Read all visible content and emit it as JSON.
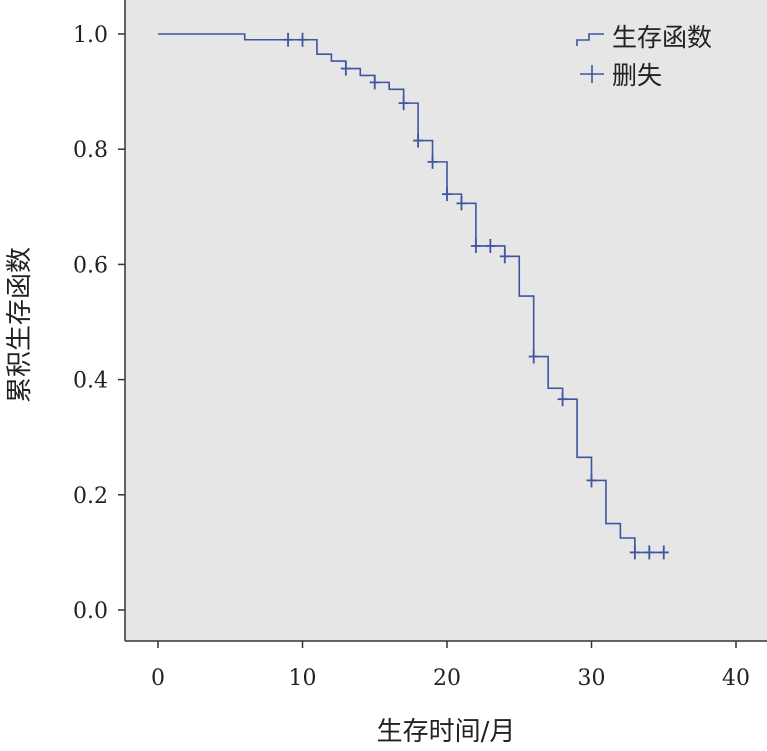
{
  "chart_data": {
    "type": "line",
    "subtype": "kaplan-meier-step",
    "title": "",
    "xlabel": "生存时间/月",
    "ylabel": "累积生存函数",
    "xlim": [
      0,
      40
    ],
    "ylim": [
      0.0,
      1.0
    ],
    "xticks": [
      "0",
      "10",
      "20",
      "30",
      "40"
    ],
    "yticks": [
      "0.0",
      "0.2",
      "0.4",
      "0.6",
      "0.8",
      "1.0"
    ],
    "grid": false,
    "legend_position": "top-right",
    "colors": {
      "series": "#3f55a0",
      "plot_background": "#e6e6e6",
      "axis": "#333333"
    },
    "series": [
      {
        "name": "生存函数",
        "points": [
          [
            0,
            1.0
          ],
          [
            6,
            0.99
          ],
          [
            11,
            0.965
          ],
          [
            12,
            0.953
          ],
          [
            13,
            0.94
          ],
          [
            14,
            0.928
          ],
          [
            15,
            0.916
          ],
          [
            16,
            0.904
          ],
          [
            17,
            0.88
          ],
          [
            18,
            0.815
          ],
          [
            19,
            0.778
          ],
          [
            20,
            0.722
          ],
          [
            21,
            0.706
          ],
          [
            22,
            0.632
          ],
          [
            24,
            0.614
          ],
          [
            25,
            0.545
          ],
          [
            26,
            0.44
          ],
          [
            27,
            0.385
          ],
          [
            28,
            0.366
          ],
          [
            29,
            0.265
          ],
          [
            30,
            0.225
          ],
          [
            31,
            0.15
          ],
          [
            32,
            0.125
          ],
          [
            33,
            0.1
          ],
          [
            35,
            0.1
          ]
        ]
      },
      {
        "name": "删失",
        "points": [
          [
            9,
            0.99
          ],
          [
            10,
            0.99
          ],
          [
            13,
            0.94
          ],
          [
            15,
            0.916
          ],
          [
            17,
            0.88
          ],
          [
            18,
            0.815
          ],
          [
            19,
            0.778
          ],
          [
            20,
            0.722
          ],
          [
            21,
            0.706
          ],
          [
            22,
            0.632
          ],
          [
            23,
            0.632
          ],
          [
            24,
            0.614
          ],
          [
            26,
            0.44
          ],
          [
            28,
            0.366
          ],
          [
            30,
            0.225
          ],
          [
            33,
            0.1
          ],
          [
            34,
            0.1
          ],
          [
            35,
            0.1
          ]
        ]
      }
    ]
  }
}
